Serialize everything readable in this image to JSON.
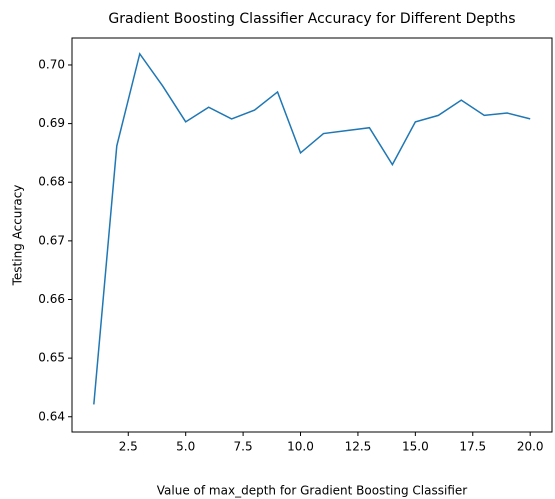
{
  "chart_data": {
    "type": "line",
    "title": "Gradient Boosting Classifier Accuracy for Different Depths",
    "xlabel": "Value of max_depth for Gradient Boosting Classifier",
    "ylabel": "Testing Accuracy",
    "x": [
      1,
      2,
      3,
      4,
      5,
      6,
      7,
      8,
      9,
      10,
      11,
      12,
      13,
      14,
      15,
      16,
      17,
      18,
      19,
      20
    ],
    "series": [
      {
        "name": "Testing Accuracy",
        "color": "#1f77b4",
        "values": [
          0.6421,
          0.6862,
          0.7019,
          0.6964,
          0.6903,
          0.6928,
          0.6908,
          0.6923,
          0.6954,
          0.685,
          0.6883,
          0.6888,
          0.6893,
          0.683,
          0.6903,
          0.6914,
          0.694,
          0.6914,
          0.6918,
          0.6908
        ]
      }
    ],
    "xlim": [
      0.05,
      20.95
    ],
    "xticks": [
      2.5,
      {
        "value": 5.0,
        "label": "5.0"
      },
      7.5,
      {
        "value": 10.0,
        "label": "10.0"
      },
      12.5,
      {
        "value": 15.0,
        "label": "15.0"
      },
      17.5,
      {
        "value": 20.0,
        "label": "20.0"
      }
    ],
    "ylim": [
      0.6374,
      0.7046
    ],
    "yticks": [
      0.64,
      0.65,
      0.66,
      0.67,
      0.68,
      0.69,
      {
        "value": 0.7,
        "label": "0.70"
      }
    ],
    "grid": false
  }
}
